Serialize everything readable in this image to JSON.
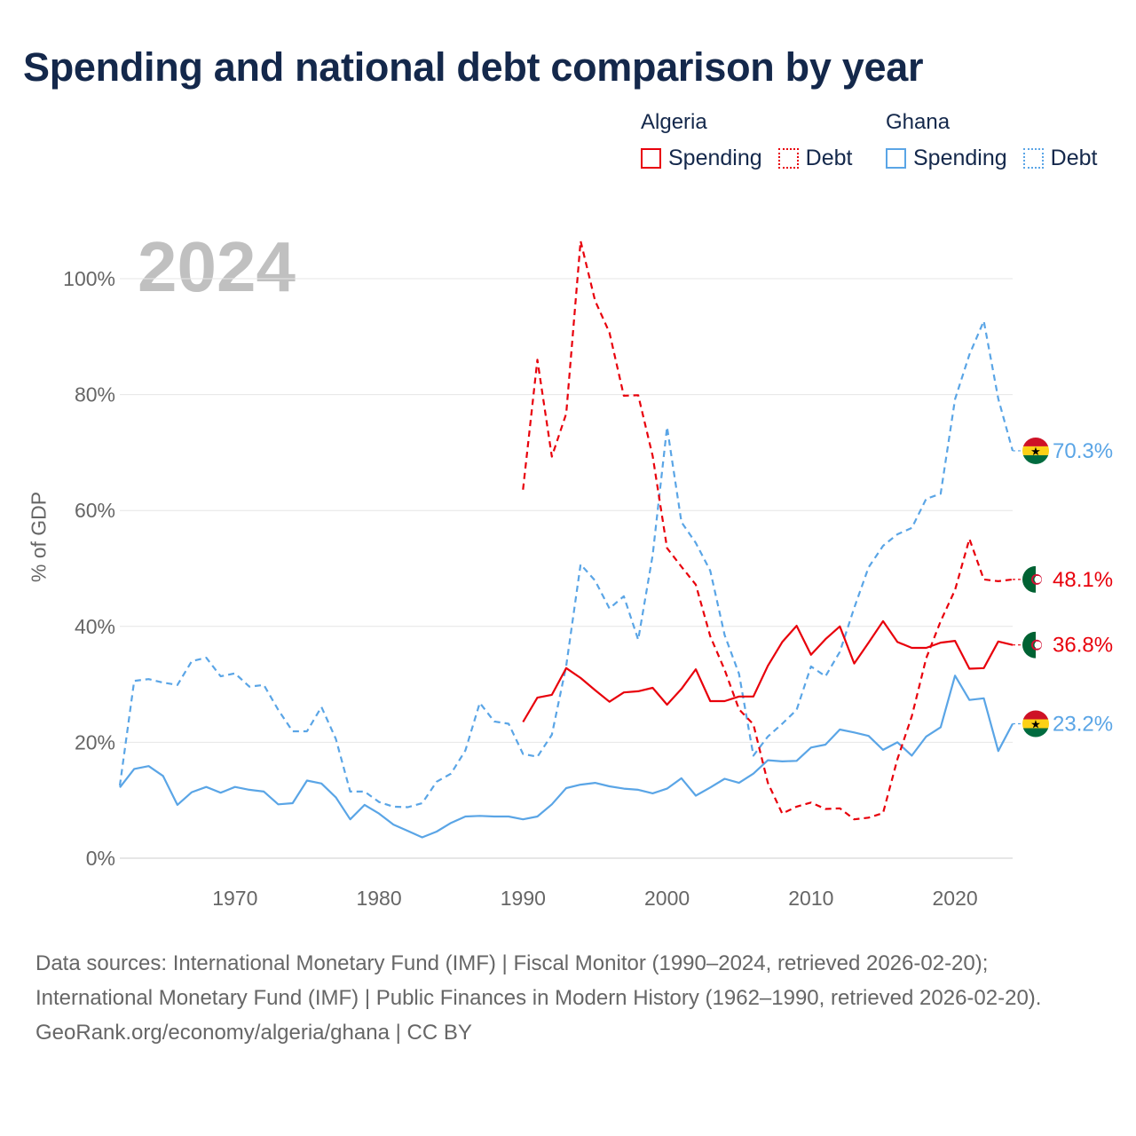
{
  "title": "Spending and national debt comparison by year",
  "legend": {
    "groups": [
      {
        "country": "Algeria",
        "items": [
          {
            "label": "Spending",
            "style": "solid",
            "color": "#e8000b"
          },
          {
            "label": "Debt",
            "style": "dotted",
            "color": "#e8000b"
          }
        ]
      },
      {
        "country": "Ghana",
        "items": [
          {
            "label": "Spending",
            "style": "solid",
            "color": "#5aa5e6"
          },
          {
            "label": "Debt",
            "style": "dotted",
            "color": "#5aa5e6"
          }
        ]
      }
    ]
  },
  "year_watermark": "2024",
  "source": {
    "text": "Data sources: International Monetary Fund (IMF) | Fiscal Monitor (1990–2024, retrieved 2026-02-20); International Monetary Fund (IMF) | Public Finances in Modern History (1962–1990, retrieved 2026-02-20).",
    "site": "GeoRank.org/economy/algeria/ghana | CC BY"
  },
  "chart_data": {
    "type": "line",
    "ylabel": "% of GDP",
    "xlabel": "",
    "xlim": [
      1962,
      2024
    ],
    "ylim": [
      0,
      110
    ],
    "xticks": [
      1970,
      1980,
      1990,
      2000,
      2010,
      2020
    ],
    "yticks": [
      0,
      20,
      40,
      60,
      80,
      100
    ],
    "ytick_labels": [
      "0%",
      "20%",
      "40%",
      "60%",
      "80%",
      "100%"
    ],
    "grid": true,
    "series": [
      {
        "name": "Ghana Debt",
        "country": "Ghana",
        "metric": "Debt",
        "color": "#5aa5e6",
        "dashed": true,
        "end_label": "70.3%",
        "flag": "ghana",
        "x": [
          1962,
          1963,
          1964,
          1965,
          1966,
          1967,
          1968,
          1969,
          1970,
          1971,
          1972,
          1973,
          1974,
          1975,
          1976,
          1977,
          1978,
          1979,
          1980,
          1981,
          1982,
          1983,
          1984,
          1985,
          1986,
          1987,
          1988,
          1989,
          1990,
          1991,
          1992,
          1993,
          1994,
          1995,
          1996,
          1997,
          1998,
          1999,
          2000,
          2001,
          2002,
          2003,
          2004,
          2005,
          2006,
          2007,
          2008,
          2009,
          2010,
          2011,
          2012,
          2013,
          2014,
          2015,
          2016,
          2017,
          2018,
          2019,
          2020,
          2021,
          2022,
          2023,
          2024
        ],
        "values": [
          12.5,
          30.6,
          30.9,
          30.3,
          29.9,
          34.0,
          34.6,
          31.4,
          31.9,
          29.6,
          29.9,
          25.6,
          21.9,
          21.9,
          26.1,
          20.6,
          11.5,
          11.5,
          9.7,
          8.9,
          8.8,
          9.5,
          13.2,
          14.6,
          18.6,
          26.8,
          23.6,
          23.2,
          18.0,
          17.5,
          21.3,
          33.2,
          50.7,
          47.9,
          43.1,
          45.2,
          37.7,
          52.3,
          74.4,
          58.0,
          54.4,
          49.6,
          38.5,
          31.8,
          17.7,
          21.0,
          23.2,
          25.6,
          33.1,
          31.4,
          35.6,
          43.2,
          50.2,
          53.9,
          55.9,
          57.0,
          62.0,
          62.9,
          79.2,
          86.9,
          92.7,
          79.3,
          70.3
        ]
      },
      {
        "name": "Ghana Spending",
        "country": "Ghana",
        "metric": "Spending",
        "color": "#5aa5e6",
        "dashed": false,
        "end_label": "23.2%",
        "flag": "ghana",
        "x": [
          1962,
          1963,
          1964,
          1965,
          1966,
          1967,
          1968,
          1969,
          1970,
          1971,
          1972,
          1973,
          1974,
          1975,
          1976,
          1977,
          1978,
          1979,
          1980,
          1981,
          1982,
          1983,
          1984,
          1985,
          1986,
          1987,
          1988,
          1989,
          1990,
          1991,
          1992,
          1993,
          1994,
          1995,
          1996,
          1997,
          1998,
          1999,
          2000,
          2001,
          2002,
          2003,
          2004,
          2005,
          2006,
          2007,
          2008,
          2009,
          2010,
          2011,
          2012,
          2013,
          2014,
          2015,
          2016,
          2017,
          2018,
          2019,
          2020,
          2021,
          2022,
          2023,
          2024
        ],
        "values": [
          12.2,
          15.4,
          15.9,
          14.2,
          9.2,
          11.4,
          12.3,
          11.3,
          12.3,
          11.8,
          11.5,
          9.3,
          9.5,
          13.4,
          12.9,
          10.5,
          6.7,
          9.2,
          7.7,
          5.8,
          4.7,
          3.6,
          4.6,
          6.1,
          7.2,
          7.3,
          7.2,
          7.2,
          6.7,
          7.2,
          9.3,
          12.1,
          12.7,
          13.0,
          12.4,
          12.0,
          11.8,
          11.2,
          12.0,
          13.8,
          10.8,
          12.2,
          13.7,
          13.0,
          14.6,
          16.9,
          16.7,
          16.8,
          19.1,
          19.6,
          22.2,
          21.7,
          21.1,
          18.7,
          20.0,
          17.7,
          21.0,
          22.6,
          31.5,
          27.3,
          27.6,
          18.5,
          23.2
        ]
      },
      {
        "name": "Algeria Debt",
        "country": "Algeria",
        "metric": "Debt",
        "color": "#e8000b",
        "dashed": true,
        "end_label": "48.1%",
        "flag": "algeria",
        "x": [
          1990,
          1991,
          1992,
          1993,
          1994,
          1995,
          1996,
          1997,
          1998,
          1999,
          2000,
          2001,
          2002,
          2003,
          2004,
          2005,
          2006,
          2007,
          2008,
          2009,
          2010,
          2011,
          2012,
          2013,
          2014,
          2015,
          2016,
          2017,
          2018,
          2019,
          2020,
          2021,
          2022,
          2023,
          2024
        ],
        "values": [
          63.6,
          86.0,
          69.3,
          76.7,
          106.5,
          96.2,
          90.7,
          79.8,
          79.9,
          69.4,
          53.5,
          50.3,
          47.2,
          38.3,
          32.5,
          25.7,
          23.1,
          13.0,
          7.7,
          8.9,
          9.6,
          8.5,
          8.6,
          6.7,
          7.0,
          7.8,
          17.1,
          24.5,
          34.5,
          40.9,
          46.3,
          55.1,
          48.1,
          47.8,
          48.1
        ]
      },
      {
        "name": "Algeria Spending",
        "country": "Algeria",
        "metric": "Spending",
        "color": "#e8000b",
        "dashed": false,
        "end_label": "36.8%",
        "flag": "algeria",
        "x": [
          1990,
          1991,
          1992,
          1993,
          1994,
          1995,
          1996,
          1997,
          1998,
          1999,
          2000,
          2001,
          2002,
          2003,
          2004,
          2005,
          2006,
          2007,
          2008,
          2009,
          2010,
          2011,
          2012,
          2013,
          2014,
          2015,
          2016,
          2017,
          2018,
          2019,
          2020,
          2021,
          2022,
          2023,
          2024
        ],
        "values": [
          23.5,
          27.7,
          28.2,
          32.8,
          31.1,
          29.0,
          27.0,
          28.6,
          28.8,
          29.4,
          26.5,
          29.2,
          32.6,
          27.1,
          27.1,
          27.9,
          27.9,
          33.2,
          37.3,
          40.1,
          35.1,
          37.8,
          40.0,
          33.6,
          37.2,
          40.9,
          37.3,
          36.3,
          36.3,
          37.2,
          37.5,
          32.7,
          32.8,
          37.4,
          36.8
        ]
      }
    ]
  }
}
